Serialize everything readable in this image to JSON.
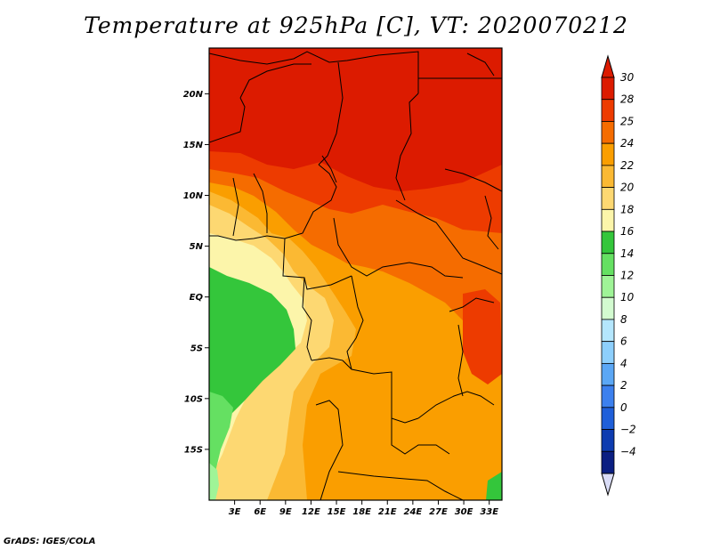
{
  "title": "Temperature at 925hPa [C], VT: 2020070212",
  "credit": "GrADS: IGES/COLA",
  "map": {
    "lon_range": [
      0,
      34.5
    ],
    "lat_range": [
      -20,
      24.5
    ],
    "lon_ticks": [
      {
        "value": 3,
        "label": "3E"
      },
      {
        "value": 6,
        "label": "6E"
      },
      {
        "value": 9,
        "label": "9E"
      },
      {
        "value": 12,
        "label": "12E"
      },
      {
        "value": 15,
        "label": "15E"
      },
      {
        "value": 18,
        "label": "18E"
      },
      {
        "value": 21,
        "label": "21E"
      },
      {
        "value": 24,
        "label": "24E"
      },
      {
        "value": 27,
        "label": "27E"
      },
      {
        "value": 30,
        "label": "30E"
      },
      {
        "value": 33,
        "label": "33E"
      }
    ],
    "lat_ticks": [
      {
        "value": 20,
        "label": "20N"
      },
      {
        "value": 15,
        "label": "15N"
      },
      {
        "value": 10,
        "label": "10N"
      },
      {
        "value": 5,
        "label": "5N"
      },
      {
        "value": 0,
        "label": "EQ"
      },
      {
        "value": -5,
        "label": "5S"
      },
      {
        "value": -10,
        "label": "10S"
      },
      {
        "value": -15,
        "label": "15S"
      }
    ]
  },
  "colorbar": {
    "levels": [
      {
        "label": "30",
        "color": "#dc1b00"
      },
      {
        "label": "28",
        "color": "#ed3b00"
      },
      {
        "label": "25",
        "color": "#f56c00"
      },
      {
        "label": "24",
        "color": "#fa9e00"
      },
      {
        "label": "22",
        "color": "#fbb933"
      },
      {
        "label": "20",
        "color": "#fdd872"
      },
      {
        "label": "18",
        "color": "#fcf5aa"
      },
      {
        "label": "16",
        "color": "#34c63b"
      },
      {
        "label": "14",
        "color": "#65e062"
      },
      {
        "label": "12",
        "color": "#9ff497"
      },
      {
        "label": "10",
        "color": "#d3fbd0"
      },
      {
        "label": "8",
        "color": "#b4e6fd"
      },
      {
        "label": "6",
        "color": "#8dcffc"
      },
      {
        "label": "4",
        "color": "#5ba7f5"
      },
      {
        "label": "2",
        "color": "#3c80ee"
      },
      {
        "label": "0",
        "color": "#1f5fd9"
      },
      {
        "label": "−2",
        "color": "#0e3cb0"
      },
      {
        "label": "−4",
        "color": "#0b1f82"
      }
    ],
    "top_color": "#dc1b00",
    "bottom_color": "#d9dcf6"
  }
}
